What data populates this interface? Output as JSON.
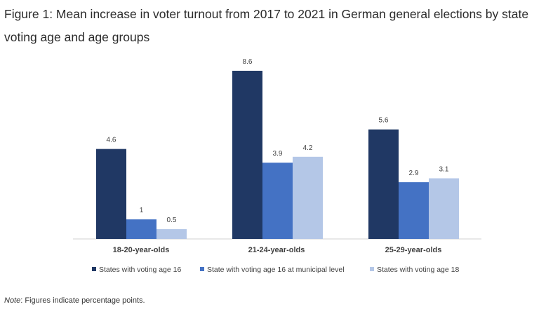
{
  "title": "Figure 1: Mean increase in voter turnout from 2017 to 2021 in German general elections by state voting age and age groups",
  "note": {
    "label": "Note",
    "text": ": Figures indicate percentage points."
  },
  "chart_data": {
    "type": "bar",
    "categories": [
      "18-20-year-olds",
      "21-24-year-olds",
      "25-29-year-olds"
    ],
    "series": [
      {
        "name": "States with voting age 16",
        "values": [
          4.6,
          8.6,
          5.6
        ],
        "labels": [
          "4.6",
          "8.6",
          "5.6"
        ],
        "color": "#203864"
      },
      {
        "name": "State with voting age 16 at municipal level",
        "values": [
          1,
          3.9,
          2.9
        ],
        "labels": [
          "1",
          "3.9",
          "2.9"
        ],
        "color": "#4472c4"
      },
      {
        "name": "States with voting age 18",
        "values": [
          0.5,
          4.2,
          3.1
        ],
        "labels": [
          "0.5",
          "4.2",
          "3.1"
        ],
        "color": "#b4c7e7"
      }
    ],
    "ylim": [
      0,
      8.6
    ],
    "grid": false,
    "legend_position": "bottom"
  }
}
